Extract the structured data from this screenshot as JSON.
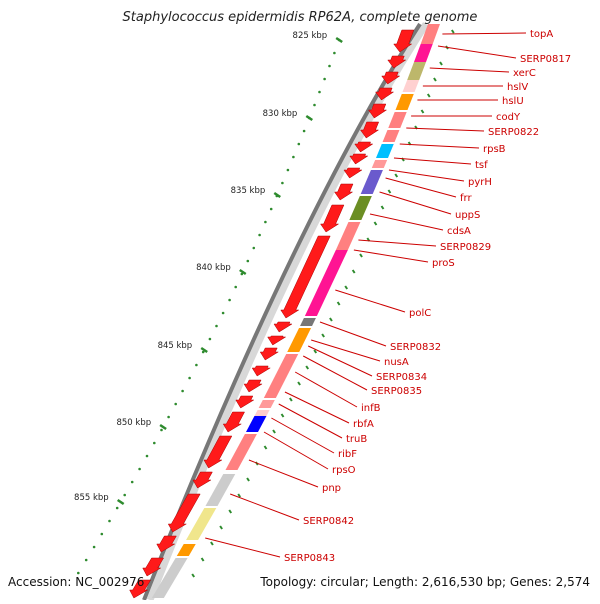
{
  "title": "Staphylococcus epidermidis RP62A, complete genome",
  "footer": {
    "accession_label": "Accession:",
    "accession": "NC_002976",
    "topology_text": "Topology: circular; Length: 2,616,530 bp; Genes: 2,574"
  },
  "ruler": {
    "ticks": [
      {
        "label": "825 kbp"
      },
      {
        "label": "830 kbp"
      },
      {
        "label": "835 kbp"
      },
      {
        "label": "840 kbp"
      },
      {
        "label": "845 kbp"
      },
      {
        "label": "850 kbp"
      },
      {
        "label": "855 kbp"
      }
    ]
  },
  "genes": [
    {
      "name": "topA"
    },
    {
      "name": "SERP0817"
    },
    {
      "name": "xerC"
    },
    {
      "name": "hslV"
    },
    {
      "name": "hslU"
    },
    {
      "name": "codY"
    },
    {
      "name": "SERP0822"
    },
    {
      "name": "rpsB"
    },
    {
      "name": "tsf"
    },
    {
      "name": "pyrH"
    },
    {
      "name": "frr"
    },
    {
      "name": "uppS"
    },
    {
      "name": "cdsA"
    },
    {
      "name": "SERP0829"
    },
    {
      "name": "proS"
    },
    {
      "name": "polC"
    },
    {
      "name": "SERP0832"
    },
    {
      "name": "nusA"
    },
    {
      "name": "SERP0834"
    },
    {
      "name": "SERP0835"
    },
    {
      "name": "infB"
    },
    {
      "name": "rbfA"
    },
    {
      "name": "truB"
    },
    {
      "name": "ribF"
    },
    {
      "name": "rpsO"
    },
    {
      "name": "pnp"
    },
    {
      "name": "SERP0842"
    },
    {
      "name": "SERP0843"
    }
  ],
  "colors": {
    "gene_red": "#ff1a1a",
    "label_red": "#cc0000",
    "tick_green": "#2e8b2e",
    "backbone": "#8a8a8a"
  }
}
